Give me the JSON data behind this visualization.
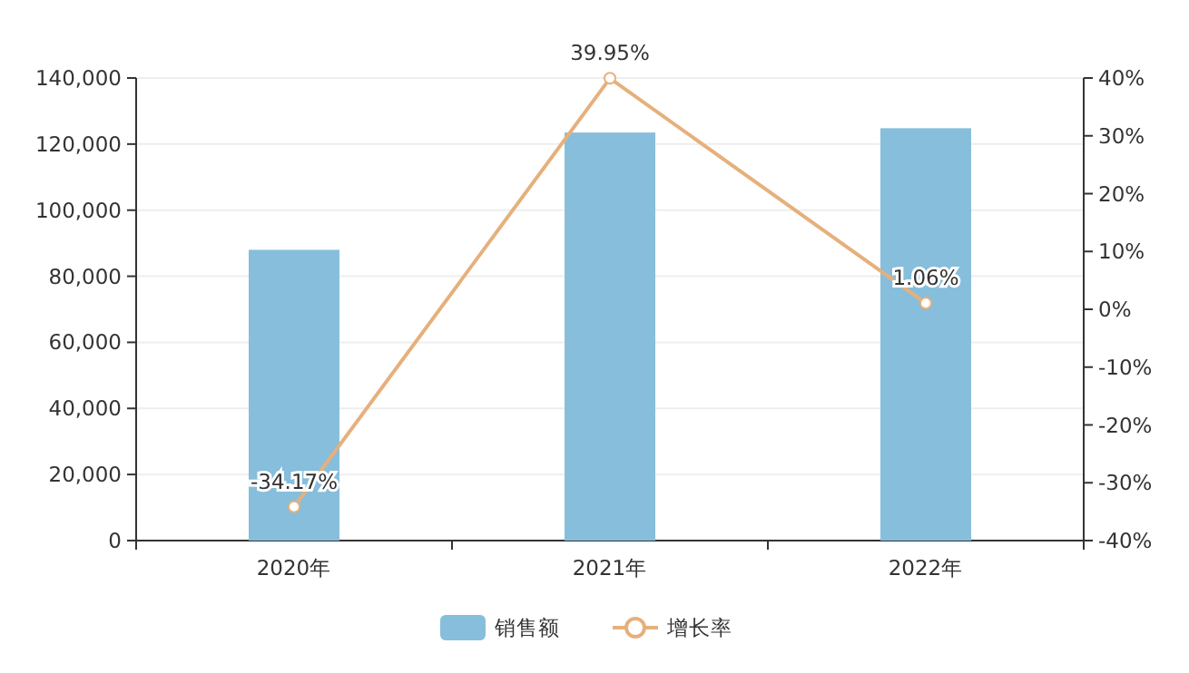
{
  "chart_data": {
    "type": "bar",
    "categories": [
      "2020年",
      "2021年",
      "2022年"
    ],
    "series": [
      {
        "name": "销售额",
        "color": "#86bedb",
        "values": [
          88000,
          123500,
          124800
        ]
      },
      {
        "name": "增长率",
        "type": "line",
        "axis": "y2",
        "color": "#e6b07c",
        "marker": "circle",
        "values": [
          -34.17,
          39.95,
          1.06
        ],
        "value_labels": [
          "-34.17%",
          "39.95%",
          "1.06%"
        ]
      }
    ],
    "ylim": [
      0,
      140000
    ],
    "yticks": [
      {
        "value": 0,
        "label": "0"
      },
      {
        "value": 20000,
        "label": "20,000"
      },
      {
        "value": 40000,
        "label": "40,000"
      },
      {
        "value": 60000,
        "label": "60,000"
      },
      {
        "value": 80000,
        "label": "80,000"
      },
      {
        "value": 100000,
        "label": "100,000"
      },
      {
        "value": 120000,
        "label": "120,000"
      },
      {
        "value": 140000,
        "label": "140,000"
      }
    ],
    "y2lim": [
      -40,
      40
    ],
    "y2ticks": [
      {
        "value": -40,
        "label": "-40%"
      },
      {
        "value": -30,
        "label": "-30%"
      },
      {
        "value": -20,
        "label": "-20%"
      },
      {
        "value": -10,
        "label": "-10%"
      },
      {
        "value": 0,
        "label": "0%"
      },
      {
        "value": 10,
        "label": "10%"
      },
      {
        "value": 20,
        "label": "20%"
      },
      {
        "value": 30,
        "label": "30%"
      },
      {
        "value": 40,
        "label": "40%"
      }
    ],
    "grid": "y",
    "legend": "bottom"
  }
}
